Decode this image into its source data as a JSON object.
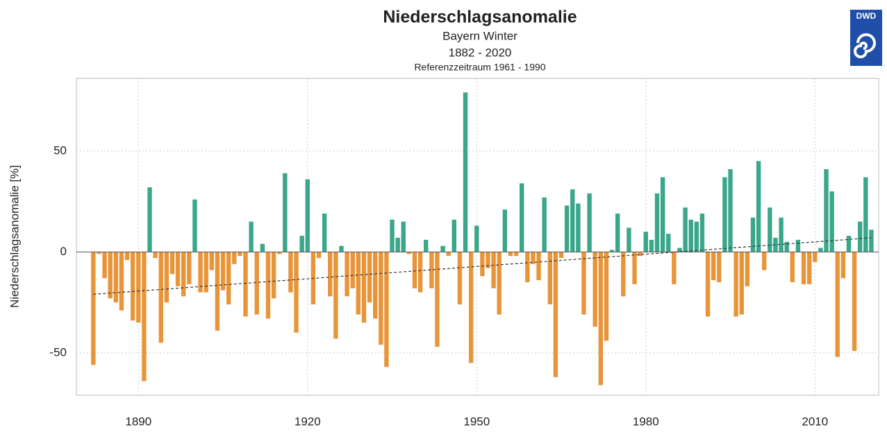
{
  "chart_data": {
    "type": "bar",
    "title": "Niederschlagsanomalie",
    "subtitles": [
      "Bayern Winter",
      "1882 - 2020",
      "Referenzzeitraum 1961 - 1990"
    ],
    "logo": "DWD",
    "y_label": "Niederschlagsanomalie [%]",
    "x_start": 1882,
    "values": [
      -56,
      -1,
      -13,
      -23,
      -25,
      -29,
      -4,
      -34,
      -35,
      -64,
      32,
      -3,
      -45,
      -25,
      -11,
      -17,
      -22,
      -16,
      26,
      -20,
      -20,
      -9,
      -39,
      -19,
      -26,
      -6,
      -2,
      -32,
      15,
      -31,
      4,
      -33,
      -23,
      -1,
      39,
      -20,
      -40,
      8,
      36,
      -26,
      -3,
      19,
      -22,
      -43,
      3,
      -22,
      -18,
      -31,
      -35,
      -25,
      -33,
      -46,
      -57,
      16,
      7,
      15,
      -1,
      -18,
      -20,
      6,
      -18,
      -47,
      3,
      -2,
      16,
      -26,
      79,
      -55,
      13,
      -12,
      -8,
      -18,
      -31,
      21,
      -2,
      -2,
      34,
      -15,
      -6,
      -14,
      27,
      -26,
      -62,
      -3,
      23,
      31,
      24,
      -31,
      29,
      -37,
      -66,
      -44,
      1,
      19,
      -22,
      12,
      -16,
      -2,
      10,
      6,
      29,
      37,
      9,
      -16,
      2,
      22,
      16,
      15,
      19,
      -32,
      -14,
      -15,
      37,
      41,
      -32,
      -31,
      -17,
      17,
      45,
      -9,
      22,
      7,
      17,
      5,
      -15,
      6,
      -16,
      -16,
      -5,
      2,
      41,
      30,
      -52,
      -13,
      8,
      -49,
      15,
      37,
      11
    ],
    "positive_color": "#3aa68a",
    "negative_color": "#e8953a",
    "trend": [
      -21,
      7
    ],
    "xlim": [
      1879,
      2021.3
    ],
    "xticks": [
      1890,
      1920,
      1950,
      1980,
      2010
    ],
    "ylim": [
      -71,
      86
    ],
    "yticks": [
      -50,
      0,
      50
    ],
    "grid": true
  }
}
